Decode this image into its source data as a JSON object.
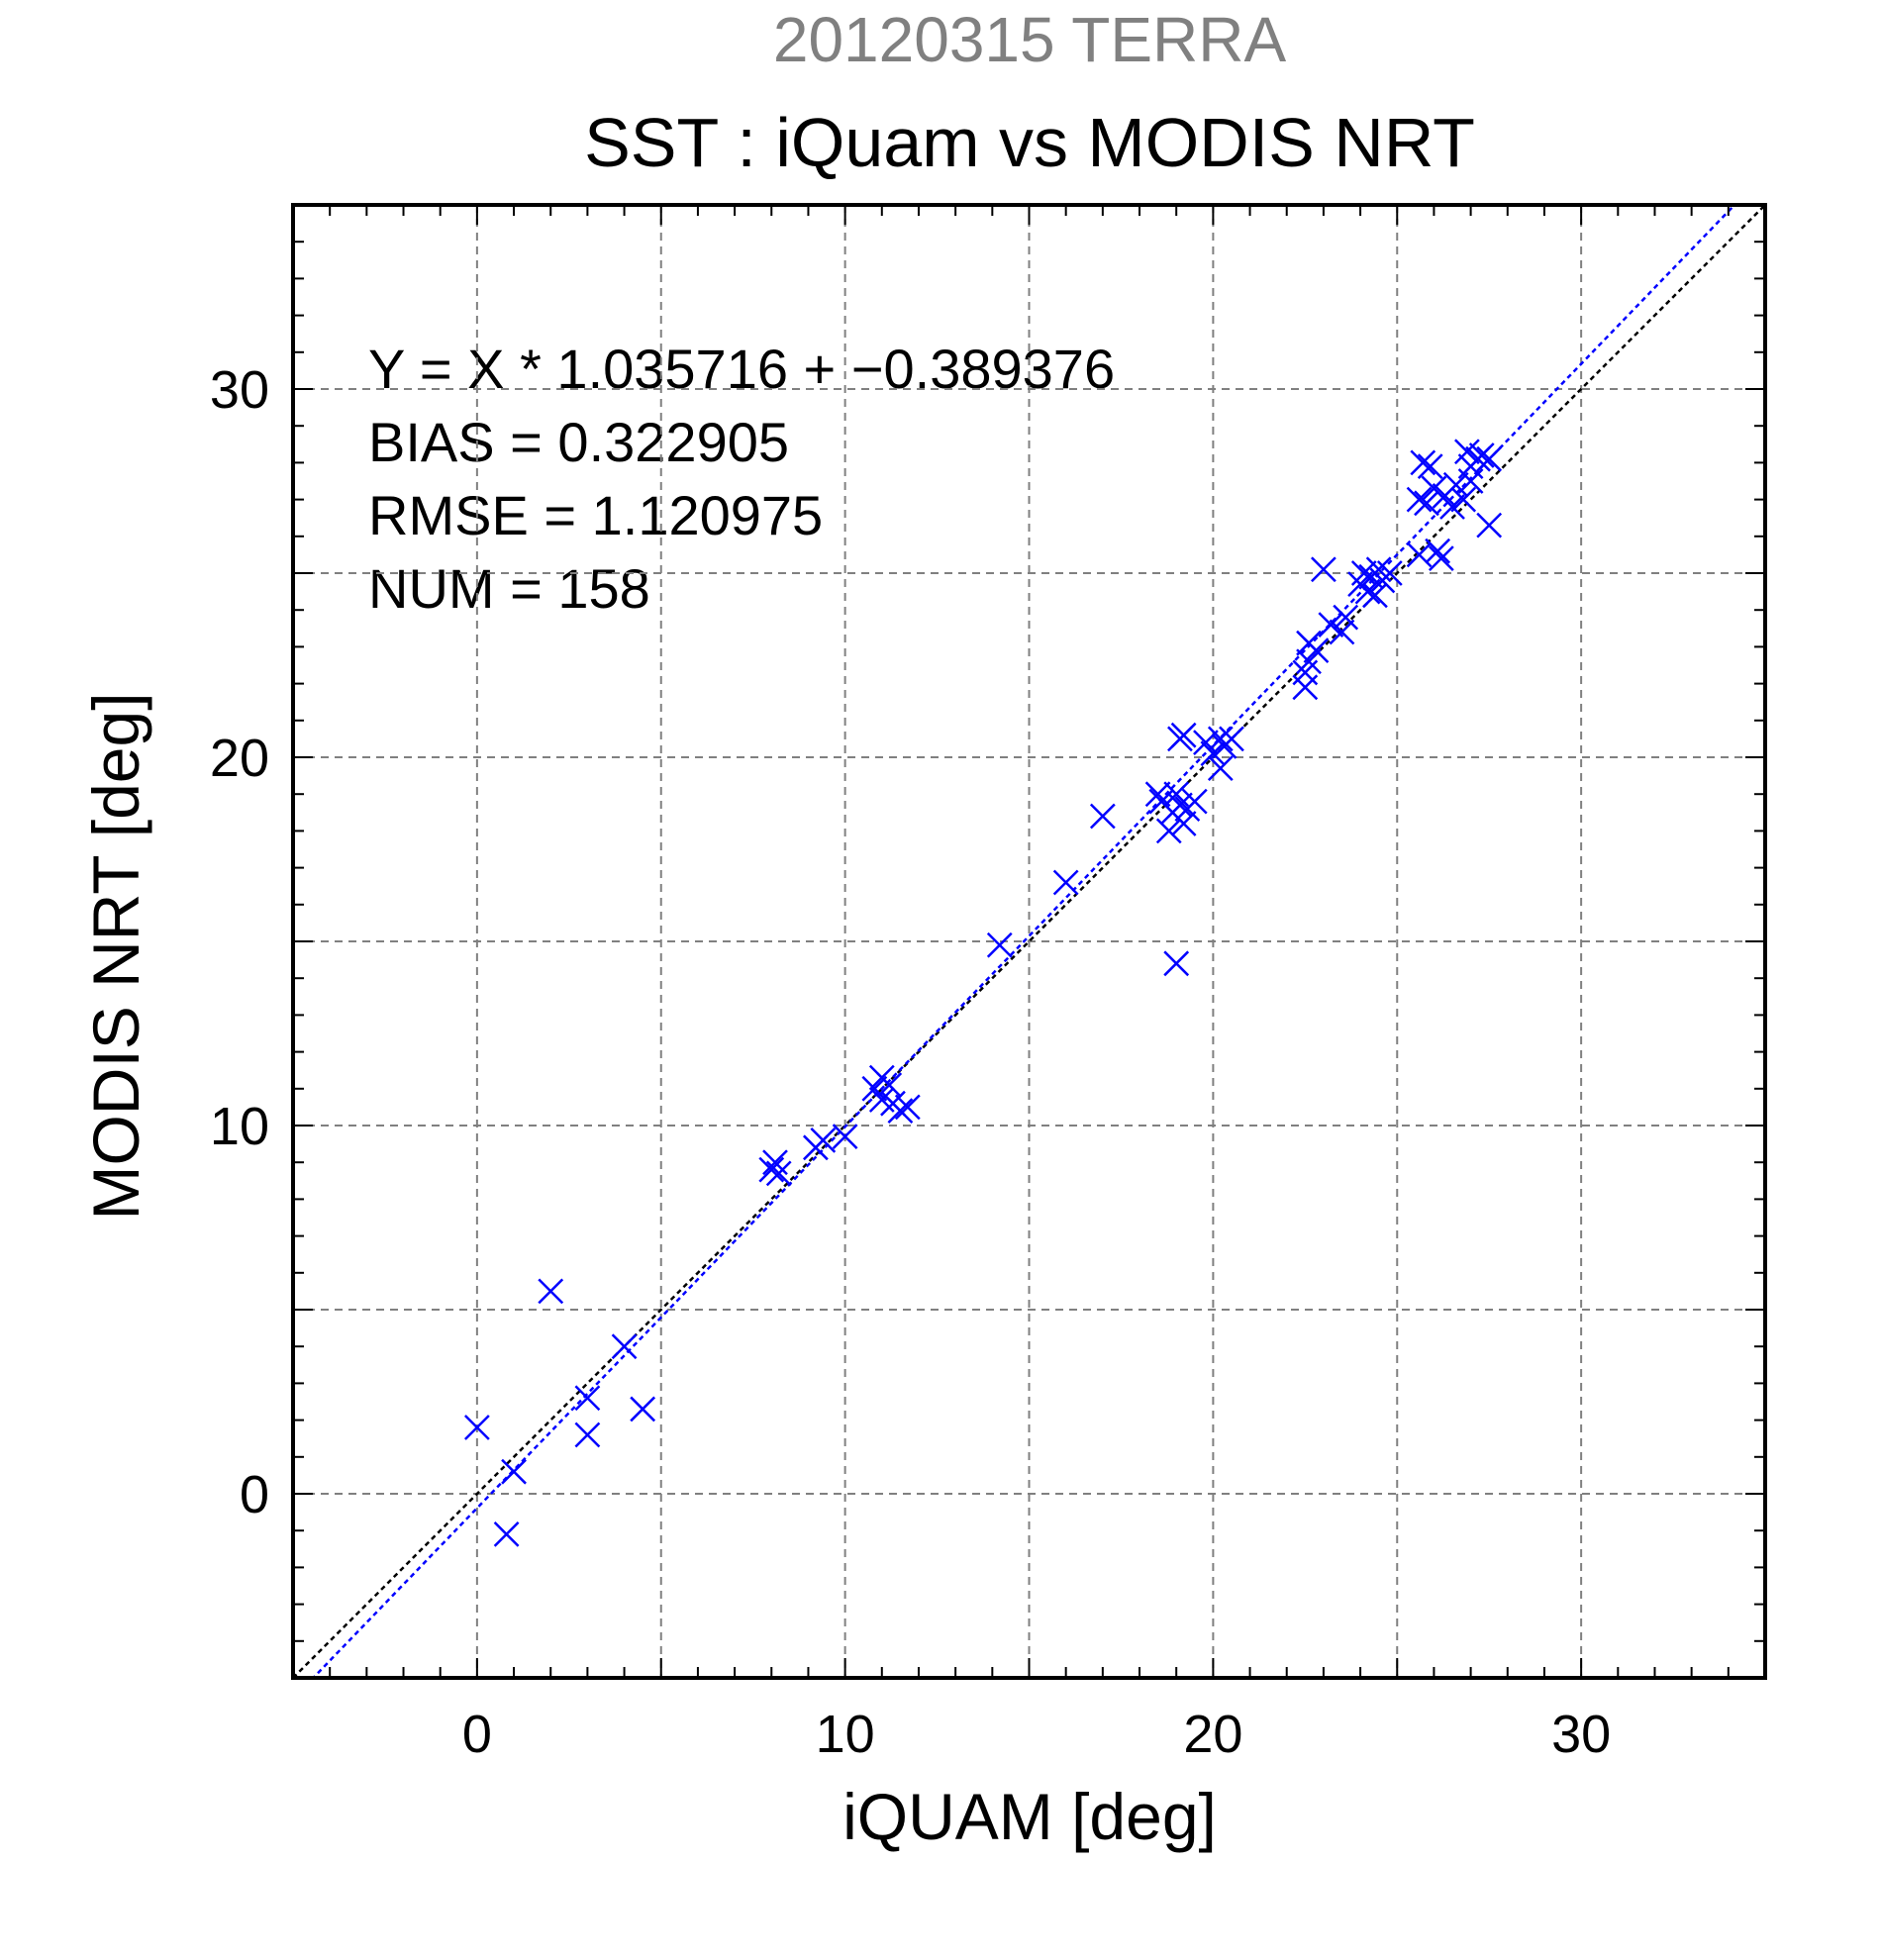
{
  "chart_data": {
    "type": "scatter",
    "subtitle": "20120315 TERRA",
    "title": "SST : iQuam vs MODIS NRT",
    "xlabel": "iQUAM [deg]",
    "ylabel": "MODIS NRT [deg]",
    "xlim": [
      -5,
      35
    ],
    "ylim": [
      -5,
      35
    ],
    "xticks": [
      0,
      10,
      20,
      30
    ],
    "yticks": [
      0,
      10,
      20,
      30
    ],
    "grid": true,
    "annotations": [
      "Y = X * 1.035716 + −0.389376",
      "BIAS = 0.322905",
      "RMSE = 1.120975",
      "NUM = 158"
    ],
    "lines": [
      {
        "name": "identity",
        "slope": 1.0,
        "intercept": 0.0,
        "color": "#000000",
        "dashed": true
      },
      {
        "name": "regression",
        "slope": 1.035716,
        "intercept": -0.389376,
        "color": "#0000ff",
        "dashed": true
      }
    ],
    "marker": "x",
    "series_color": "#0000ff",
    "points": [
      [
        0.0,
        1.8
      ],
      [
        0.8,
        -1.1
      ],
      [
        1.0,
        0.6
      ],
      [
        2.0,
        5.5
      ],
      [
        3.0,
        2.6
      ],
      [
        3.0,
        1.6
      ],
      [
        4.0,
        4.0
      ],
      [
        4.5,
        2.3
      ],
      [
        8.0,
        8.8
      ],
      [
        8.1,
        9.0
      ],
      [
        8.2,
        8.7
      ],
      [
        9.2,
        9.4
      ],
      [
        9.4,
        9.6
      ],
      [
        10.0,
        9.7
      ],
      [
        10.8,
        11.0
      ],
      [
        11.0,
        11.3
      ],
      [
        11.0,
        10.7
      ],
      [
        11.2,
        11.1
      ],
      [
        11.3,
        10.6
      ],
      [
        11.5,
        10.4
      ],
      [
        11.7,
        10.5
      ],
      [
        14.2,
        14.9
      ],
      [
        16.0,
        16.6
      ],
      [
        17.0,
        18.4
      ],
      [
        18.5,
        19.0
      ],
      [
        18.6,
        18.8
      ],
      [
        18.8,
        18.0
      ],
      [
        18.9,
        18.5
      ],
      [
        19.0,
        19.0
      ],
      [
        19.0,
        14.4
      ],
      [
        19.1,
        18.7
      ],
      [
        19.2,
        18.2
      ],
      [
        19.3,
        18.6
      ],
      [
        19.5,
        18.8
      ],
      [
        19.1,
        20.5
      ],
      [
        19.2,
        20.6
      ],
      [
        19.8,
        20.4
      ],
      [
        20.0,
        20.1
      ],
      [
        20.2,
        20.5
      ],
      [
        20.3,
        20.3
      ],
      [
        20.2,
        19.7
      ],
      [
        20.5,
        20.5
      ],
      [
        22.5,
        21.9
      ],
      [
        22.5,
        22.3
      ],
      [
        22.6,
        22.6
      ],
      [
        22.6,
        23.1
      ],
      [
        22.8,
        22.9
      ],
      [
        23.0,
        25.1
      ],
      [
        23.2,
        23.6
      ],
      [
        23.5,
        23.4
      ],
      [
        23.6,
        23.8
      ],
      [
        24.0,
        24.7
      ],
      [
        24.1,
        25.0
      ],
      [
        24.2,
        24.5
      ],
      [
        24.3,
        24.9
      ],
      [
        24.4,
        24.4
      ],
      [
        24.5,
        25.1
      ],
      [
        24.6,
        24.8
      ],
      [
        24.8,
        25.0
      ],
      [
        25.6,
        27.0
      ],
      [
        25.6,
        25.5
      ],
      [
        25.7,
        28.0
      ],
      [
        25.8,
        26.9
      ],
      [
        25.9,
        27.9
      ],
      [
        26.0,
        27.3
      ],
      [
        26.1,
        25.6
      ],
      [
        26.2,
        25.4
      ],
      [
        26.3,
        27.1
      ],
      [
        26.5,
        26.8
      ],
      [
        26.6,
        27.4
      ],
      [
        26.8,
        27.0
      ],
      [
        26.9,
        28.3
      ],
      [
        27.0,
        27.5
      ],
      [
        27.0,
        27.9
      ],
      [
        27.2,
        28.1
      ],
      [
        27.3,
        28.2
      ],
      [
        27.5,
        28.1
      ],
      [
        27.5,
        26.3
      ]
    ]
  }
}
